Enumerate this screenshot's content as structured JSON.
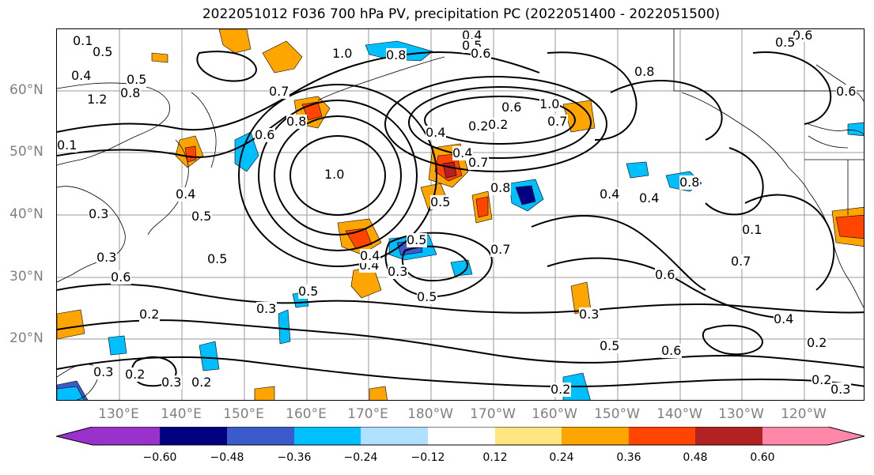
{
  "title": "2022051012 F036 700 hPa PV, precipitation PC (2022051400 - 2022051500)",
  "lat_labels": [
    "60°N",
    "50°N",
    "40°N",
    "30°N",
    "20°N"
  ],
  "lon_labels": [
    "130°E",
    "140°E",
    "150°E",
    "160°E",
    "170°E",
    "180°W",
    "170°W",
    "160°W",
    "150°W",
    "140°W",
    "130°W",
    "120°W"
  ],
  "colorbar": {
    "ticks": [
      "−0.60",
      "−0.48",
      "−0.36",
      "−0.24",
      "−0.12",
      "0.12",
      "0.24",
      "0.36",
      "0.48",
      "0.60"
    ],
    "colors": [
      "#9932cc",
      "#000080",
      "#3b5bcc",
      "#00bfff",
      "#b0e0ff",
      "#ffffff",
      "#ffe680",
      "#ffa500",
      "#ff4500",
      "#b22222",
      "#ff88aa"
    ]
  },
  "contour_labels": [
    "0.1",
    "0.5",
    "0.4",
    "0.5",
    "1.2",
    "0.8",
    "0.7",
    "1.0",
    "0.8",
    "0.4",
    "0.5",
    "0.6",
    "1.0",
    "0.8",
    "0.6",
    "0.4",
    "0.6",
    "0.2",
    "0.4",
    "0.2",
    "0.8",
    "0.7",
    "1.0",
    "0.4",
    "0.5",
    "0.3",
    "0.5",
    "0.6",
    "0.4",
    "0.3",
    "0.5",
    "0.3",
    "0.2",
    "0.2",
    "0.3",
    "0.2",
    "0.5",
    "0.3",
    "0.5",
    "0.4",
    "0.7",
    "0.4",
    "0.6",
    "0.1",
    "0.7",
    "0.3",
    "0.5",
    "0.6",
    "0.4",
    "0.2",
    "0.2",
    "0.3",
    "0.2",
    "0.8",
    "0.3",
    "0.4",
    "0.1",
    "0.5",
    "0.6",
    "0.5",
    "0.6",
    "0.7",
    "0.8"
  ]
}
